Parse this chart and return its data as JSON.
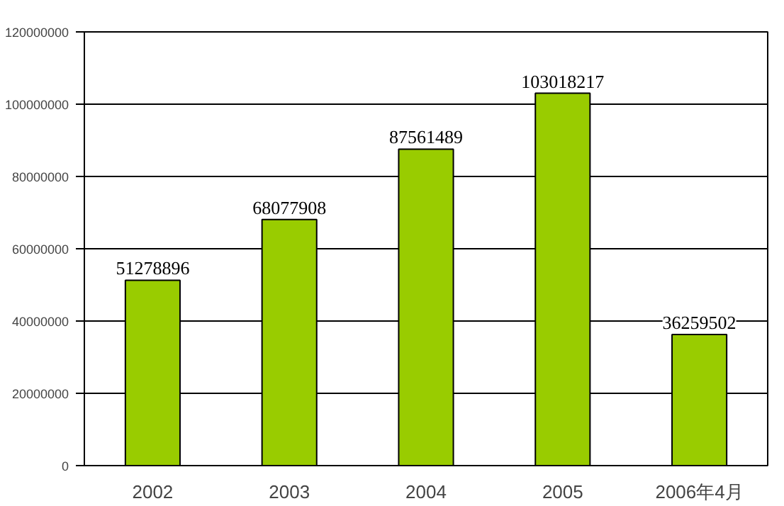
{
  "chart_data": {
    "type": "bar",
    "categories": [
      "2002",
      "2003",
      "2004",
      "2005",
      "2006年4月"
    ],
    "values": [
      51278896,
      68077908,
      87561489,
      103018217,
      36259502
    ],
    "color": "#99cc00",
    "ylim": [
      0,
      120000000
    ],
    "yticks": [
      0,
      20000000,
      40000000,
      60000000,
      80000000,
      100000000,
      120000000
    ],
    "grid": "y",
    "data_labels": true
  }
}
